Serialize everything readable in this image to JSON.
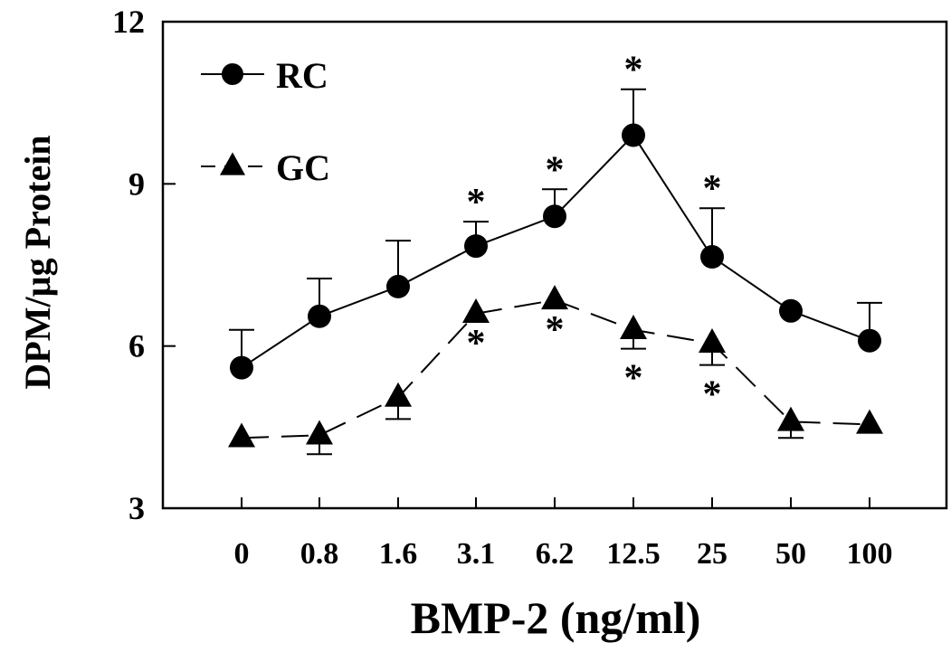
{
  "chart_data": {
    "type": "line",
    "xlabel": "BMP-2 (ng/ml)",
    "ylabel": "DPM/µg Protein",
    "ylim": [
      3,
      12
    ],
    "yticks": [
      "3",
      "6",
      "9",
      "12"
    ],
    "categories": [
      "0",
      "0.8",
      "1.6",
      "3.1",
      "6.2",
      "12.5",
      "25",
      "50",
      "100"
    ],
    "legend_position": "top-left",
    "grid": false,
    "significance_mark": "*",
    "series": [
      {
        "name": "RC",
        "marker": "circle",
        "line_style": "solid",
        "values": [
          5.6,
          6.55,
          7.1,
          7.85,
          8.4,
          9.9,
          7.65,
          6.65,
          6.1
        ],
        "error_upper": [
          0.7,
          0.7,
          0.85,
          0.45,
          0.5,
          0.85,
          0.9,
          null,
          0.7
        ],
        "significant": [
          false,
          false,
          false,
          true,
          true,
          true,
          true,
          false,
          false
        ]
      },
      {
        "name": "GC",
        "marker": "triangle",
        "line_style": "dashed",
        "values": [
          4.3,
          4.35,
          5.05,
          6.6,
          6.85,
          6.3,
          6.05,
          4.6,
          4.55
        ],
        "error_lower": [
          null,
          0.35,
          0.4,
          null,
          null,
          0.35,
          0.4,
          0.3,
          null
        ],
        "significant": [
          false,
          false,
          false,
          true,
          true,
          true,
          true,
          false,
          false
        ]
      }
    ]
  }
}
